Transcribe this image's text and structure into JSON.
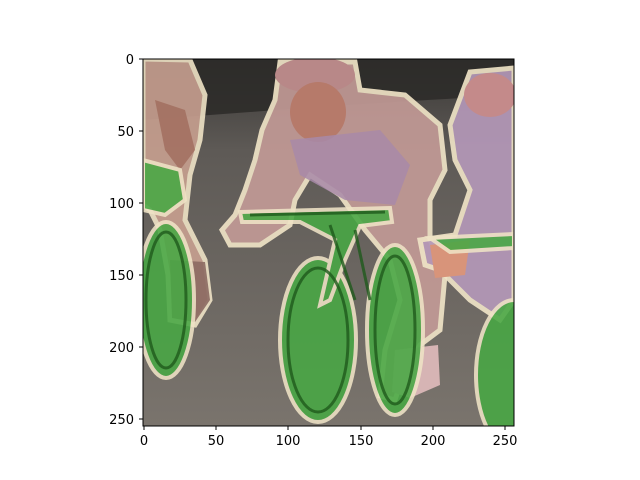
{
  "figure": {
    "background": "#ffffff",
    "x_ticks": [
      "0",
      "50",
      "100",
      "150",
      "200",
      "250"
    ],
    "y_ticks": [
      "0",
      "50",
      "100",
      "150",
      "200",
      "250"
    ]
  },
  "image": {
    "description_colors": {
      "track": "#6f6b66",
      "dark_background": "#2e2e2e",
      "person_overlay": "#c89890",
      "bicycle_overlay": "#3f9a3a",
      "outline": "#f1e6c8"
    }
  },
  "segmentation_classes": [
    "person",
    "bicycle"
  ]
}
